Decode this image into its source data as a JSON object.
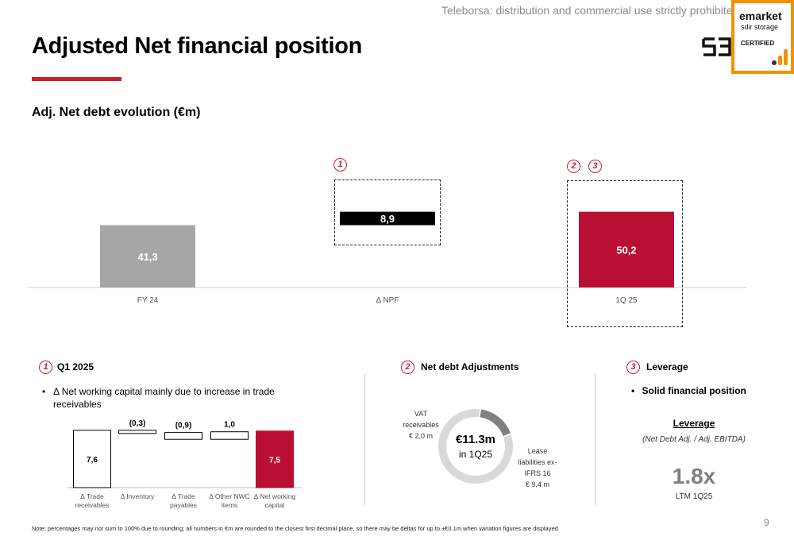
{
  "header": {
    "watermark": "Teleborsa: distribution and commercial use strictly prohibited",
    "title": "Adjusted Net financial position",
    "subtitle": "Adj. Net debt evolution (€m)",
    "logo_text": "S",
    "badge": {
      "line1": "emarket",
      "line2": "sdir storage",
      "line3": "CERTIFIED"
    }
  },
  "chart_data": [
    {
      "type": "bar",
      "title": "Adj. Net debt evolution (€m)",
      "categories": [
        "FY 24",
        "Δ NPF",
        "1Q 25"
      ],
      "values": [
        41.3,
        8.9,
        50.2
      ],
      "value_labels": [
        "41,3",
        "8,9",
        "50,2"
      ],
      "colors": [
        "#a6a6a6",
        "#000000",
        "#b90f33"
      ],
      "markers": [
        "",
        "1",
        "2 3"
      ]
    },
    {
      "type": "bar",
      "subtype": "waterfall",
      "categories": [
        "Δ Trade receivables",
        "Δ Inventory",
        "Δ Trade payables",
        "Δ Other NWC items",
        "Δ Net working capital"
      ],
      "values": [
        7.6,
        -0.3,
        -0.9,
        1.0,
        7.5
      ],
      "value_labels": [
        "7,6",
        "(0,3)",
        "(0,9)",
        "1,0",
        "7,5"
      ],
      "colors": [
        "#ffffff",
        "#ffffff",
        "#ffffff",
        "#ffffff",
        "#b90f33"
      ]
    },
    {
      "type": "pie",
      "subtype": "donut",
      "center_value": "€11.3m",
      "center_sub": "in 1Q25",
      "slices": [
        {
          "label": "VAT receivables € 2,0 m",
          "value": 2.0,
          "color": "#808080"
        },
        {
          "label": "Lease liabilities ex-IFRS 16 € 9,4 m",
          "value": 9.4,
          "color": "#d9d9d9"
        }
      ]
    }
  ],
  "sections": {
    "q1": {
      "number": "1",
      "title": "Q1 2025",
      "bullet": "Δ Net working capital mainly due to increase in trade receivables"
    },
    "adjustments": {
      "number": "2",
      "title": "Net debt Adjustments",
      "vat_label": "VAT receivables",
      "vat_value": "€ 2,0 m",
      "lease_label": "Lease liabilities ex-IFRS 16",
      "lease_value": "€ 9,4 m"
    },
    "leverage": {
      "number": "3",
      "title": "Leverage",
      "bullet": "Solid financial position",
      "kpi_title": "Leverage",
      "kpi_formula": "(Net Debt Adj. / Adj. EBITDA)",
      "kpi_value": "1.8x",
      "kpi_period": "LTM 1Q25"
    }
  },
  "footer": {
    "note": "Note: percentages may not sum to 100% due to rounding; all numbers in €m are rounded to the closest first decimal place, so there may be deltas for up to ±€0.1m when variation figures are displayed",
    "page_number": "9"
  }
}
